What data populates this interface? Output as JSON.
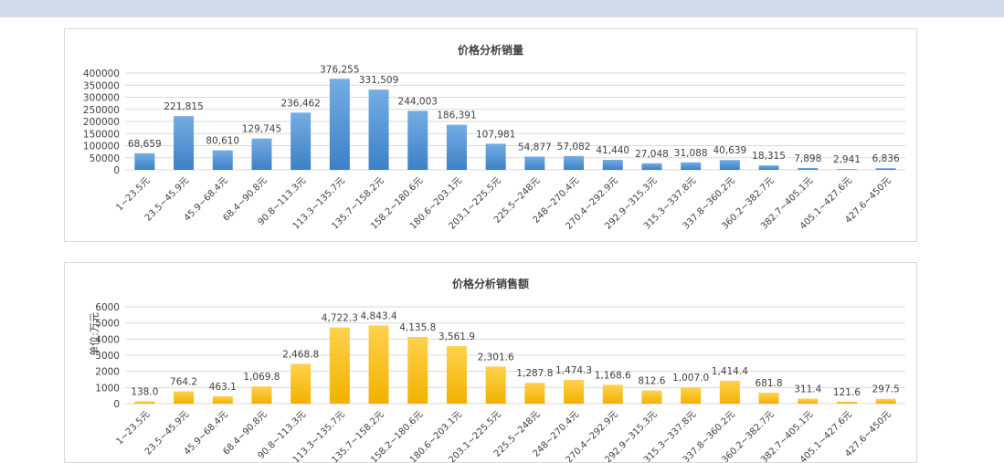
{
  "chart_data": [
    {
      "type": "bar",
      "title": "价格分析销量",
      "ylabel": "",
      "ylim": [
        0,
        400000
      ],
      "yticks": [
        "400000",
        "350000",
        "300000",
        "250000",
        "200000",
        "150000",
        "100000",
        "50000",
        "0"
      ],
      "grid": true,
      "color": "#5b9bd5",
      "categories": [
        "1~23.5元",
        "23.5~45.9元",
        "45.9~68.4元",
        "68.4~90.8元",
        "90.8~113.3元",
        "113.3~135.7元",
        "135.7~158.2元",
        "158.2~180.6元",
        "180.6~203.1元",
        "203.1~225.5元",
        "225.5~248元",
        "248~270.4元",
        "270.4~292.9元",
        "292.9~315.3元",
        "315.3~337.8元",
        "337.8~360.2元",
        "360.2~382.7元",
        "382.7~405.1元",
        "405.1~427.6元",
        "427.6~450元"
      ],
      "values": [
        68659,
        221815,
        80610,
        129745,
        236462,
        376255,
        331509,
        244003,
        186391,
        107981,
        54877,
        57082,
        41440,
        27048,
        31088,
        40639,
        18315,
        7898,
        2941,
        6836
      ],
      "labels": [
        "68,659",
        "221,815",
        "80,610",
        "129,745",
        "236,462",
        "376,255",
        "331,509",
        "244,003",
        "186,391",
        "107,981",
        "54,877",
        "57,082",
        "41,440",
        "27,048",
        "31,088",
        "40,639",
        "18,315",
        "7,898",
        "2,941",
        "6,836"
      ]
    },
    {
      "type": "bar",
      "title": "价格分析销售额",
      "ylabel": "单位:万元",
      "ylim": [
        0,
        6000
      ],
      "yticks": [
        "6000",
        "5000",
        "4000",
        "3000",
        "2000",
        "1000",
        "0"
      ],
      "grid": true,
      "color": "#ffc000",
      "categories": [
        "1~23.5元",
        "23.5~45.9元",
        "45.9~68.4元",
        "68.4~90.8元",
        "90.8~113.3元",
        "113.3~135.7元",
        "135.7~158.2元",
        "158.2~180.6元",
        "180.6~203.1元",
        "203.1~225.5元",
        "225.5~248元",
        "248~270.4元",
        "270.4~292.9元",
        "292.9~315.3元",
        "315.3~337.8元",
        "337.8~360.2元",
        "360.2~382.7元",
        "382.7~405.1元",
        "405.1~427.6元",
        "427.6~450元"
      ],
      "values": [
        138.0,
        764.2,
        463.1,
        1069.8,
        2468.8,
        4722.3,
        4843.4,
        4135.8,
        3561.9,
        2301.6,
        1287.8,
        1474.3,
        1168.6,
        812.6,
        1007.0,
        1414.4,
        681.8,
        311.4,
        121.6,
        297.5
      ],
      "labels": [
        "138.0",
        "764.2",
        "463.1",
        "1,069.8",
        "2,468.8",
        "4,722.3",
        "4,843.4",
        "4,135.8",
        "3,561.9",
        "2,301.6",
        "1,287.8",
        "1,474.3",
        "1,168.6",
        "812.6",
        "1,007.0",
        "1,414.4",
        "681.8",
        "311.4",
        "121.6",
        "297.5"
      ]
    }
  ]
}
